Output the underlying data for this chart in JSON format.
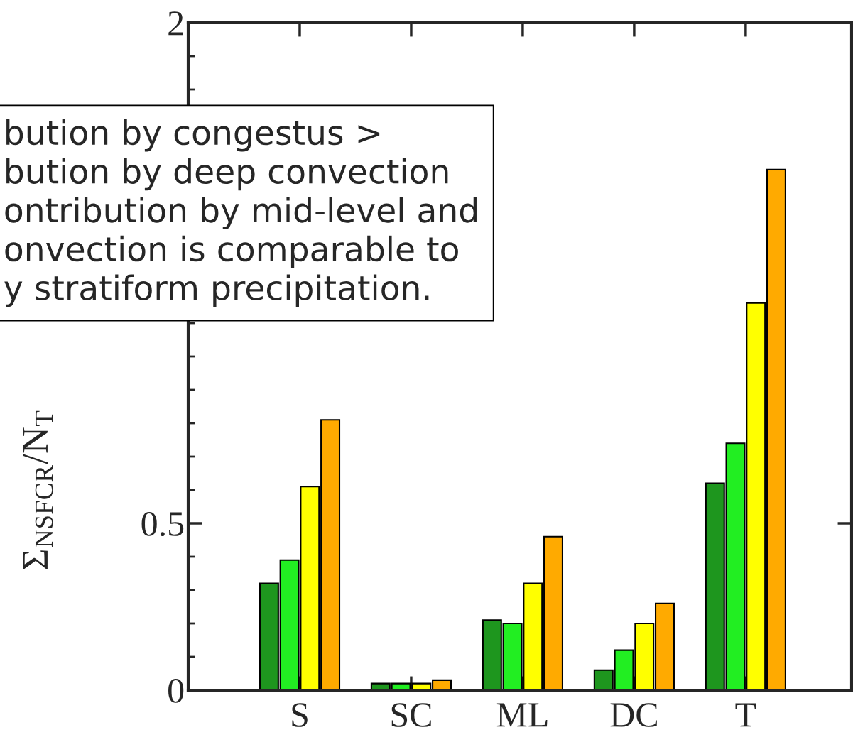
{
  "chart_data": {
    "type": "bar",
    "ylabel": "Σ$_{NSFCR}$/N$_{T}$",
    "categories": [
      "S",
      "SC",
      "ML",
      "DC",
      "T"
    ],
    "series": [
      {
        "color": "#1e961e",
        "values": [
          0.32,
          0.02,
          0.21,
          0.06,
          0.62
        ]
      },
      {
        "color": "#22ee22",
        "values": [
          0.39,
          0.02,
          0.2,
          0.12,
          0.74
        ]
      },
      {
        "color": "#ffff00",
        "values": [
          0.61,
          0.02,
          0.32,
          0.2,
          1.16
        ]
      },
      {
        "color": "#ffaa00",
        "values": [
          0.81,
          0.03,
          0.46,
          0.26,
          1.56
        ]
      }
    ],
    "ylim": [
      0,
      2
    ],
    "yticks": [
      0,
      0.5,
      2
    ],
    "grid": false,
    "legend": false,
    "annotations": [
      "bution by congestus >\nbution by deep convection\nontribution by mid-level and\nonvection is comparable to\ny stratiform precipitation."
    ]
  }
}
